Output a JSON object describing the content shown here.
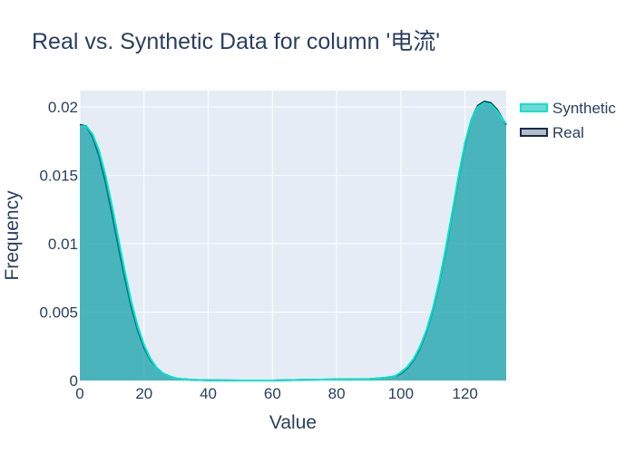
{
  "chart_data": {
    "type": "area",
    "title": "Real vs. Synthetic Data for column '电流'",
    "xlabel": "Value",
    "ylabel": "Frequency",
    "xlim": [
      0,
      132.8
    ],
    "ylim": [
      0,
      0.0212
    ],
    "x_ticks": [
      0,
      20,
      40,
      60,
      80,
      100,
      120
    ],
    "x_tick_labels": [
      "0",
      "20",
      "40",
      "60",
      "80",
      "100",
      "120"
    ],
    "y_ticks": [
      0,
      0.005,
      0.01,
      0.015,
      0.02
    ],
    "y_tick_labels": [
      "0",
      "0.005",
      "0.01",
      "0.015",
      "0.02"
    ],
    "grid": true,
    "legend_position": "top-right",
    "series": [
      {
        "name": "Synthetic",
        "color": "#00e5cc",
        "fill": "rgba(0,180,180,0.55)",
        "x": [
          0,
          2,
          4,
          6,
          8,
          10,
          12,
          14,
          16,
          18,
          20,
          22,
          24,
          26,
          28,
          30,
          32,
          35,
          40,
          50,
          60,
          70,
          80,
          90,
          95,
          98,
          100,
          102,
          104,
          106,
          108,
          110,
          112,
          114,
          116,
          118,
          120,
          122,
          124,
          126,
          128,
          130,
          132,
          132.8
        ],
        "values": [
          0.0186,
          0.0186,
          0.018,
          0.0168,
          0.015,
          0.0128,
          0.0104,
          0.008,
          0.0058,
          0.004,
          0.0026,
          0.0016,
          0.0009,
          0.0005,
          0.0003,
          0.00015,
          0.0001,
          5e-05,
          2e-05,
          0.0,
          0.0,
          5e-05,
          8e-05,
          0.0001,
          0.0002,
          0.0003,
          0.0006,
          0.001,
          0.0016,
          0.0025,
          0.0037,
          0.0053,
          0.0073,
          0.0097,
          0.0123,
          0.015,
          0.0174,
          0.0191,
          0.02,
          0.0203,
          0.0202,
          0.0197,
          0.019,
          0.0188
        ]
      },
      {
        "name": "Real",
        "color": "#1b2a4a",
        "fill": "rgba(80,110,140,0.45)",
        "x": [
          0,
          2,
          4,
          6,
          8,
          10,
          12,
          14,
          16,
          18,
          20,
          22,
          24,
          26,
          28,
          30,
          32,
          35,
          40,
          50,
          60,
          70,
          80,
          90,
          95,
          98,
          100,
          102,
          104,
          106,
          108,
          110,
          112,
          114,
          116,
          118,
          120,
          122,
          124,
          126,
          128,
          130,
          132,
          132.8
        ],
        "values": [
          0.0187,
          0.0186,
          0.0178,
          0.0164,
          0.0145,
          0.0122,
          0.0098,
          0.0075,
          0.0054,
          0.0037,
          0.0024,
          0.0015,
          0.0009,
          0.0005,
          0.0003,
          0.00015,
          0.0001,
          5e-05,
          2e-05,
          0.0,
          0.0,
          5e-05,
          8e-05,
          0.0001,
          0.0002,
          0.0003,
          0.0005,
          0.0009,
          0.0015,
          0.0024,
          0.0036,
          0.0052,
          0.0072,
          0.0096,
          0.0122,
          0.0149,
          0.0173,
          0.0191,
          0.0201,
          0.0204,
          0.0203,
          0.0198,
          0.019,
          0.0187
        ]
      }
    ]
  }
}
